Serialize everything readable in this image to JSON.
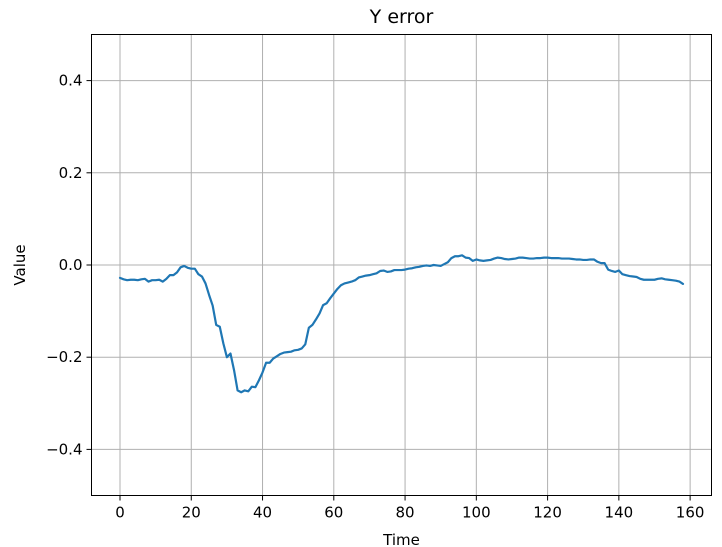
{
  "chart_data": {
    "type": "line",
    "title": "Y error",
    "xlabel": "Time",
    "ylabel": "Value",
    "xlim": [
      -8,
      166
    ],
    "ylim": [
      -0.5,
      0.5
    ],
    "xticks": [
      0,
      20,
      40,
      60,
      80,
      100,
      120,
      140,
      160
    ],
    "xtick_labels": [
      "0",
      "20",
      "40",
      "60",
      "80",
      "100",
      "120",
      "140",
      "160"
    ],
    "yticks": [
      -0.4,
      -0.2,
      0.0,
      0.2,
      0.4
    ],
    "ytick_labels": [
      "−0.4",
      "−0.2",
      "0.0",
      "0.2",
      "0.4"
    ],
    "grid": true,
    "series": [
      {
        "color": "#1f77b4",
        "x": [
          0,
          1,
          2,
          3,
          4,
          5,
          6,
          7,
          8,
          9,
          10,
          11,
          12,
          13,
          14,
          15,
          16,
          17,
          18,
          19,
          20,
          21,
          22,
          23,
          24,
          25,
          26,
          27,
          28,
          29,
          30,
          31,
          32,
          33,
          34,
          35,
          36,
          37,
          38,
          39,
          40,
          41,
          42,
          43,
          44,
          45,
          46,
          47,
          48,
          49,
          50,
          51,
          52,
          53,
          54,
          55,
          56,
          57,
          58,
          59,
          60,
          61,
          62,
          63,
          64,
          65,
          66,
          67,
          68,
          69,
          70,
          71,
          72,
          73,
          74,
          75,
          76,
          77,
          78,
          79,
          80,
          81,
          82,
          83,
          84,
          85,
          86,
          87,
          88,
          89,
          90,
          91,
          92,
          93,
          94,
          95,
          96,
          97,
          98,
          99,
          100,
          101,
          102,
          103,
          104,
          105,
          106,
          107,
          108,
          109,
          110,
          111,
          112,
          113,
          114,
          115,
          116,
          117,
          118,
          119,
          120,
          121,
          122,
          123,
          124,
          125,
          126,
          127,
          128,
          129,
          130,
          131,
          132,
          133,
          134,
          135,
          136,
          137,
          138,
          139,
          140,
          141,
          142,
          143,
          144,
          145,
          146,
          147,
          148,
          149,
          150,
          151,
          152,
          153,
          154,
          155,
          156,
          157,
          158
        ],
        "values": [
          -0.028,
          -0.031,
          -0.033,
          -0.032,
          -0.032,
          -0.033,
          -0.031,
          -0.03,
          -0.036,
          -0.033,
          -0.033,
          -0.032,
          -0.036,
          -0.03,
          -0.022,
          -0.022,
          -0.016,
          -0.005,
          -0.002,
          -0.006,
          -0.008,
          -0.008,
          -0.02,
          -0.025,
          -0.04,
          -0.065,
          -0.088,
          -0.13,
          -0.134,
          -0.17,
          -0.2,
          -0.192,
          -0.228,
          -0.272,
          -0.276,
          -0.272,
          -0.274,
          -0.264,
          -0.265,
          -0.25,
          -0.233,
          -0.212,
          -0.212,
          -0.203,
          -0.198,
          -0.193,
          -0.19,
          -0.189,
          -0.188,
          -0.185,
          -0.184,
          -0.181,
          -0.172,
          -0.136,
          -0.13,
          -0.118,
          -0.105,
          -0.087,
          -0.083,
          -0.072,
          -0.062,
          -0.052,
          -0.044,
          -0.04,
          -0.038,
          -0.036,
          -0.033,
          -0.027,
          -0.025,
          -0.023,
          -0.022,
          -0.02,
          -0.018,
          -0.013,
          -0.012,
          -0.015,
          -0.014,
          -0.011,
          -0.011,
          -0.011,
          -0.01,
          -0.008,
          -0.007,
          -0.005,
          -0.004,
          -0.002,
          -0.001,
          -0.002,
          -0.0,
          -0.001,
          -0.002,
          0.002,
          0.006,
          0.015,
          0.019,
          0.019,
          0.021,
          0.016,
          0.015,
          0.009,
          0.012,
          0.01,
          0.009,
          0.01,
          0.011,
          0.014,
          0.016,
          0.015,
          0.013,
          0.012,
          0.013,
          0.014,
          0.016,
          0.016,
          0.015,
          0.014,
          0.014,
          0.015,
          0.015,
          0.016,
          0.016,
          0.015,
          0.015,
          0.015,
          0.014,
          0.014,
          0.014,
          0.013,
          0.012,
          0.012,
          0.011,
          0.011,
          0.012,
          0.012,
          0.007,
          0.004,
          0.004,
          -0.01,
          -0.013,
          -0.015,
          -0.012,
          -0.02,
          -0.022,
          -0.024,
          -0.025,
          -0.026,
          -0.03,
          -0.032,
          -0.032,
          -0.032,
          -0.032,
          -0.03,
          -0.029,
          -0.031,
          -0.032,
          -0.033,
          -0.034,
          -0.036,
          -0.041
        ]
      }
    ]
  }
}
